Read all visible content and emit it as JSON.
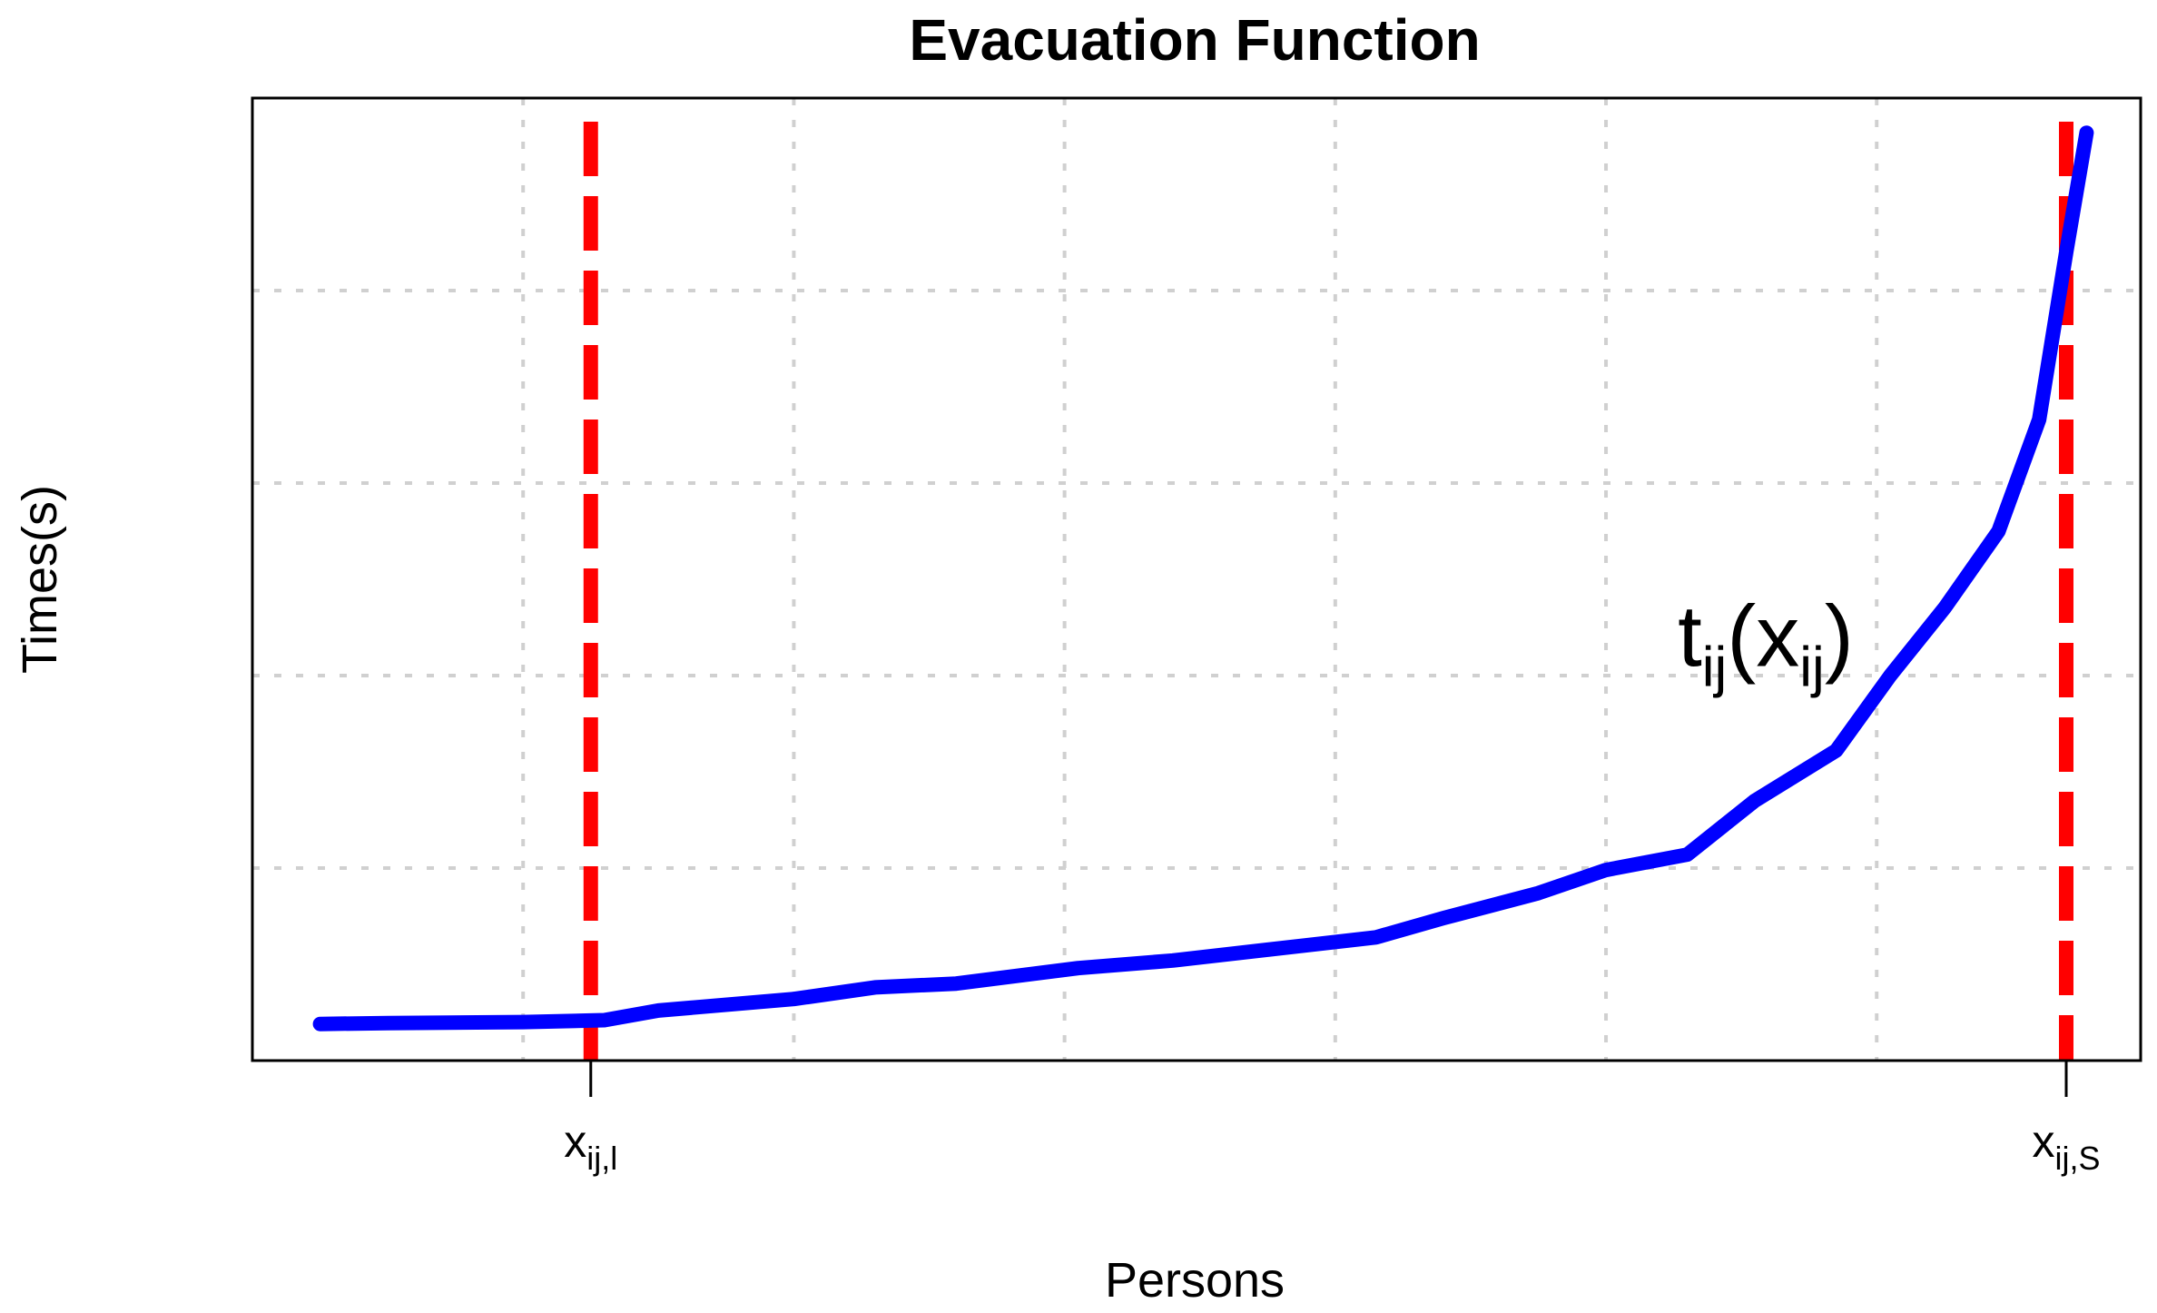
{
  "chart_data": {
    "type": "line",
    "title": "Evacuation Function",
    "xlabel": "Persons",
    "ylabel": "Times(s)",
    "xlim": [
      0,
      13.95
    ],
    "ylim": [
      0,
      5
    ],
    "grid": true,
    "x_ticks": [
      {
        "x": 2.5,
        "base": "x",
        "sub": "ij,l"
      },
      {
        "x": 13.4,
        "base": "x",
        "sub": "ij,S"
      }
    ],
    "series": [
      {
        "color": "#0000ff",
        "x": [
          0.5,
          1.0,
          2.0,
          2.6,
          3.0,
          4.0,
          4.6,
          5.2,
          6.1,
          6.8,
          7.8,
          8.3,
          8.8,
          9.5,
          10.0,
          10.6,
          11.1,
          11.7,
          12.1,
          12.5,
          12.9,
          13.2,
          13.4,
          13.55
        ],
        "y": [
          0.19,
          0.195,
          0.2,
          0.21,
          0.26,
          0.32,
          0.38,
          0.4,
          0.48,
          0.52,
          0.6,
          0.64,
          0.74,
          0.87,
          0.99,
          1.07,
          1.35,
          1.61,
          2.0,
          2.35,
          2.75,
          3.33,
          4.2,
          4.82
        ]
      }
    ],
    "vlines": [
      {
        "x": 2.5,
        "color": "#ff0000",
        "style": "dashed"
      },
      {
        "x": 13.4,
        "color": "#ff0000",
        "style": "dashed"
      }
    ],
    "annotation": {
      "x": 10.53,
      "y": 2.05,
      "base": "t",
      "sub1": "ij",
      "paren_open": "(",
      "inner": "x",
      "sub2": "ij",
      "paren_close": ")"
    }
  }
}
